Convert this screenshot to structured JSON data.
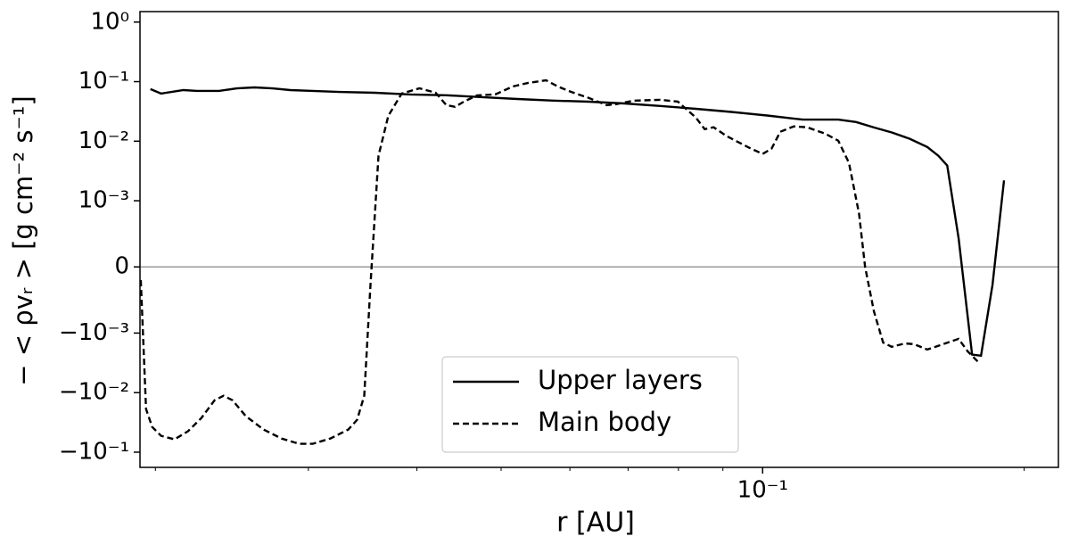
{
  "chart_data": {
    "type": "line",
    "xlabel": "r [AU]",
    "ylabel": "− < ρvᵣ >  [g cm⁻² s⁻¹]",
    "xscale": "log",
    "yscale": "symlog",
    "linthresh": 0.001,
    "xlim": [
      0.0192,
      0.219
    ],
    "ylim": [
      -0.18,
      1.5
    ],
    "xticks": [
      {
        "value": 0.1,
        "label": "10⁻¹"
      }
    ],
    "xminorticks": [
      0.02,
      0.03,
      0.04,
      0.05,
      0.06,
      0.07,
      0.08,
      0.09,
      0.2
    ],
    "yticks": [
      {
        "value": 1,
        "label": "10⁰"
      },
      {
        "value": 0.1,
        "label": "10⁻¹"
      },
      {
        "value": 0.01,
        "label": "10⁻²"
      },
      {
        "value": 0.001,
        "label": "10⁻³"
      },
      0,
      {
        "value": -0.001,
        "label": "−10⁻³"
      },
      {
        "value": -0.01,
        "label": "−10⁻²"
      },
      {
        "value": -0.1,
        "label": "−10⁻¹"
      }
    ],
    "zero_line": true,
    "legend": "lower center",
    "series": [
      {
        "name": "Upper layers",
        "color": "#000000",
        "dash": "solid",
        "x": [
          0.01974,
          0.0203,
          0.02154,
          0.02233,
          0.02368,
          0.02482,
          0.026,
          0.02728,
          0.0286,
          0.03034,
          0.03257,
          0.03579,
          0.03934,
          0.04325,
          0.04753,
          0.05224,
          0.05741,
          0.0631,
          0.06935,
          0.07622,
          0.08378,
          0.09207,
          0.1012,
          0.1112,
          0.1222,
          0.1281,
          0.1343,
          0.1408,
          0.1476,
          0.1547,
          0.1593,
          0.1631,
          0.1681,
          0.1742,
          0.1784,
          0.1839,
          0.1896
        ],
        "values": [
          0.075,
          0.063,
          0.072,
          0.07,
          0.07,
          0.077,
          0.08,
          0.077,
          0.072,
          0.07,
          0.067,
          0.065,
          0.061,
          0.059,
          0.055,
          0.051,
          0.048,
          0.046,
          0.043,
          0.039,
          0.035,
          0.031,
          0.027,
          0.023,
          0.023,
          0.021,
          0.017,
          0.014,
          0.011,
          0.008,
          0.0057,
          0.0039,
          0.00043,
          -0.0023,
          -0.0024,
          -0.00027,
          0.0022
        ]
      },
      {
        "name": "Main body",
        "color": "#000000",
        "dash": "dashed",
        "x": [
          0.01924,
          0.01951,
          0.01983,
          0.0203,
          0.02104,
          0.0218,
          0.02259,
          0.0234,
          0.02396,
          0.02453,
          0.02542,
          0.02664,
          0.02793,
          0.02928,
          0.03034,
          0.03181,
          0.03335,
          0.03414,
          0.03479,
          0.03537,
          0.03613,
          0.03708,
          0.03842,
          0.04027,
          0.04203,
          0.04325,
          0.04426,
          0.04531,
          0.04694,
          0.04921,
          0.0516,
          0.05373,
          0.05633,
          0.05809,
          0.06019,
          0.0631,
          0.06613,
          0.06772,
          0.07101,
          0.07622,
          0.07988,
          0.08179,
          0.08378,
          0.08577,
          0.08781,
          0.09099,
          0.09652,
          0.1,
          0.1024,
          0.1048,
          0.1086,
          0.1125,
          0.118,
          0.1222,
          0.1257,
          0.1291,
          0.1312,
          0.1343,
          0.1376,
          0.1408,
          0.1459,
          0.1494,
          0.1547,
          0.1623,
          0.1681,
          0.1722,
          0.1771
        ],
        "values": [
          -0.0002,
          -0.0189,
          -0.0377,
          -0.0531,
          -0.061,
          -0.0447,
          -0.0267,
          -0.0134,
          -0.0113,
          -0.0134,
          -0.0249,
          -0.0417,
          -0.0589,
          -0.0723,
          -0.0723,
          -0.0589,
          -0.0417,
          -0.0286,
          -0.0113,
          -0.00027,
          0.0057,
          0.0267,
          0.063,
          0.0774,
          0.0652,
          0.0403,
          0.0377,
          0.0462,
          0.0589,
          0.061,
          0.083,
          0.0953,
          0.1054,
          0.083,
          0.0674,
          0.0531,
          0.0403,
          0.0417,
          0.0479,
          0.0496,
          0.0462,
          0.034,
          0.0249,
          0.0159,
          0.0171,
          0.0121,
          0.00774,
          0.0061,
          0.00748,
          0.0144,
          0.0177,
          0.0171,
          0.0134,
          0.0102,
          0.00432,
          0.000806,
          0,
          -0.000672,
          -0.00144,
          -0.0017,
          -0.00149,
          -0.00154,
          -0.00189,
          -0.00149,
          -0.00125,
          -0.00203,
          -0.00306
        ]
      }
    ]
  }
}
